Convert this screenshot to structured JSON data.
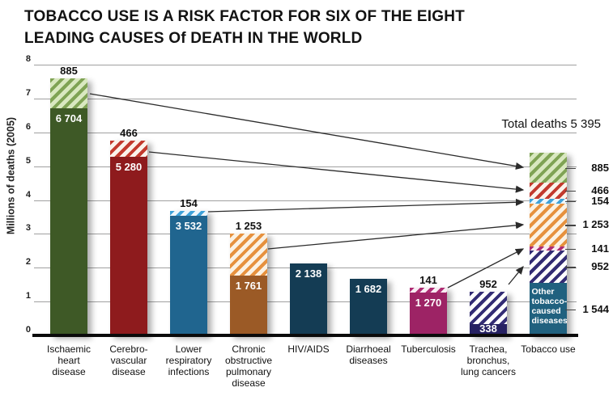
{
  "header": {
    "title_line1": "TOBACCO USE IS A RISK FACTOR FOR SIX OF THE EIGHT",
    "title_line2": "LEADING CAUSES Of DEATH IN THE WORLD"
  },
  "y_axis": {
    "title": "Millions of deaths (2005)"
  },
  "annotations": {
    "total_deaths": "Total deaths 5 395"
  },
  "colors": {
    "green": {
      "solid": "#3E5926",
      "hatch_fg": "#7FA354",
      "hatch_bg": "#D9E8C0"
    },
    "red": {
      "solid": "#8E1B1D",
      "hatch_fg": "#C23A2E",
      "hatch_bg": "#FBF3EC"
    },
    "blue": {
      "solid": "#20658F",
      "hatch_fg": "#3FA2D9",
      "hatch_bg": "#EFF7FC"
    },
    "orange": {
      "solid": "#9B5A26",
      "hatch_fg": "#E6913E",
      "hatch_bg": "#FBF2E4"
    },
    "navy": {
      "solid": "#143C54"
    },
    "magenta": {
      "solid": "#9D2365",
      "hatch_fg": "#AE2B73",
      "hatch_bg": "#F8ECF3"
    },
    "indigo": {
      "solid": "#262162",
      "hatch_fg": "#332C74",
      "hatch_bg": "#FFFFFF"
    },
    "teal": {
      "solid": "#20617F"
    },
    "gridline": "#A0A0A0",
    "axis_line": "#0B0B0B",
    "arrow": "#2B2B2B"
  },
  "chart_data": {
    "type": "bar",
    "stacked": true,
    "title": "TOBACCO USE IS A RISK FACTOR FOR SIX OF THE EIGHT LEADING CAUSES Of DEATH IN THE WORLD",
    "ylabel": "Millions of deaths (2005)",
    "values_unit": "thousands of deaths",
    "ylim": [
      0,
      8
    ],
    "y_ticks": [
      0,
      1,
      2,
      3,
      4,
      5,
      6,
      7,
      8
    ],
    "grid": true,
    "total_deaths_annotation": "Total deaths 5 395",
    "categories": [
      "Ischaemic heart disease",
      "Cerebro-vascular disease",
      "Lower respiratory infections",
      "Chronic obstructive pulmonary disease",
      "HIV/AIDS",
      "Diarrhoeal diseases",
      "Tuberculosis",
      "Trachea, bronchus, lung cancers",
      "Tobacco use"
    ],
    "bars": [
      {
        "category": "Ischaemic heart disease",
        "category_lines": [
          "Ischaemic",
          "heart",
          "disease"
        ],
        "top_label": "885",
        "segments": [
          {
            "value": 6704,
            "display": "6 704",
            "style": "solid",
            "color": "green",
            "label_inside": "top"
          },
          {
            "value": 885,
            "display": "885",
            "style": "hatch",
            "color": "green"
          }
        ]
      },
      {
        "category": "Cerebro-vascular disease",
        "category_lines": [
          "Cerebro-",
          "vascular",
          "disease"
        ],
        "top_label": "466",
        "segments": [
          {
            "value": 5280,
            "display": "5 280",
            "style": "solid",
            "color": "red",
            "label_inside": "top"
          },
          {
            "value": 466,
            "display": "466",
            "style": "hatch",
            "color": "red"
          }
        ]
      },
      {
        "category": "Lower respiratory infections",
        "category_lines": [
          "Lower",
          "respiratory",
          "infections"
        ],
        "top_label": "154",
        "segments": [
          {
            "value": 3532,
            "display": "3 532",
            "style": "solid",
            "color": "blue",
            "label_inside": "top"
          },
          {
            "value": 154,
            "display": "154",
            "style": "hatch",
            "color": "blue"
          }
        ]
      },
      {
        "category": "Chronic obstructive pulmonary disease",
        "category_lines": [
          "Chronic",
          "obstructive",
          "pulmonary",
          "disease"
        ],
        "top_label": "1 253",
        "segments": [
          {
            "value": 1761,
            "display": "1 761",
            "style": "solid",
            "color": "orange",
            "label_inside": "top"
          },
          {
            "value": 1253,
            "display": "1 253",
            "style": "hatch",
            "color": "orange"
          }
        ]
      },
      {
        "category": "HIV/AIDS",
        "category_lines": [
          "HIV/AIDS"
        ],
        "segments": [
          {
            "value": 2138,
            "display": "2 138",
            "style": "solid",
            "color": "navy",
            "label_inside": "top"
          }
        ]
      },
      {
        "category": "Diarrhoeal diseases",
        "category_lines": [
          "Diarrhoeal",
          "diseases"
        ],
        "segments": [
          {
            "value": 1682,
            "display": "1 682",
            "style": "solid",
            "color": "navy",
            "label_inside": "top"
          }
        ]
      },
      {
        "category": "Tuberculosis",
        "category_lines": [
          "Tuberculosis"
        ],
        "top_label": "141",
        "segments": [
          {
            "value": 1270,
            "display": "1 270",
            "style": "solid",
            "color": "magenta",
            "label_inside": "top"
          },
          {
            "value": 141,
            "display": "141",
            "style": "hatch",
            "color": "magenta"
          }
        ]
      },
      {
        "category": "Trachea, bronchus, lung cancers",
        "category_lines": [
          "Trachea,",
          "bronchus,",
          "lung cancers"
        ],
        "top_label": "952",
        "segments": [
          {
            "value": 338,
            "display": "338",
            "style": "solid",
            "color": "indigo",
            "label_inside": "bottom"
          },
          {
            "value": 952,
            "display": "952",
            "style": "hatch",
            "color": "indigo"
          }
        ]
      },
      {
        "category": "Tobacco use",
        "category_lines": [
          "Tobacco use"
        ],
        "right_labels": true,
        "segments": [
          {
            "value": 1544,
            "display": "1 544",
            "style": "solid",
            "color": "teal",
            "text_lines": [
              "Other",
              "tobacco-",
              "caused",
              "diseases*"
            ]
          },
          {
            "value": 952,
            "display": "952",
            "style": "hatch",
            "color": "indigo"
          },
          {
            "value": 141,
            "display": "141",
            "style": "hatch",
            "color": "magenta"
          },
          {
            "value": 1253,
            "display": "1 253",
            "style": "hatch",
            "color": "orange"
          },
          {
            "value": 154,
            "display": "154",
            "style": "hatch",
            "color": "blue"
          },
          {
            "value": 466,
            "display": "466",
            "style": "hatch",
            "color": "red"
          },
          {
            "value": 885,
            "display": "885",
            "style": "hatch",
            "color": "green"
          }
        ]
      }
    ]
  }
}
